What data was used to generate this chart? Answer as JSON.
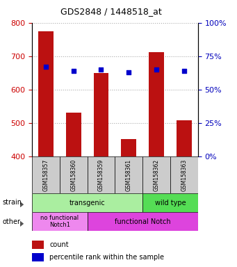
{
  "title": "GDS2848 / 1448518_at",
  "samples": [
    "GSM158357",
    "GSM158360",
    "GSM158359",
    "GSM158361",
    "GSM158362",
    "GSM158363"
  ],
  "counts": [
    775,
    530,
    650,
    452,
    712,
    507
  ],
  "percentiles": [
    67,
    64,
    65,
    63,
    65,
    64
  ],
  "ylim_left": [
    400,
    800
  ],
  "ylim_right": [
    0,
    100
  ],
  "yticks_left": [
    400,
    500,
    600,
    700,
    800
  ],
  "yticks_right": [
    0,
    25,
    50,
    75,
    100
  ],
  "bar_color": "#bb1111",
  "dot_color": "#0000cc",
  "strain_transgenic_color": "#aaeea0",
  "strain_wildtype_color": "#55dd55",
  "other_nofunc_color": "#ee88ee",
  "other_func_color": "#dd44dd",
  "legend_count_color": "#bb1111",
  "legend_pct_color": "#0000cc",
  "left_tick_color": "#cc0000",
  "right_tick_color": "#0000bb",
  "grid_color": "#aaaaaa",
  "sample_box_color": "#cccccc",
  "bar_width": 0.55
}
